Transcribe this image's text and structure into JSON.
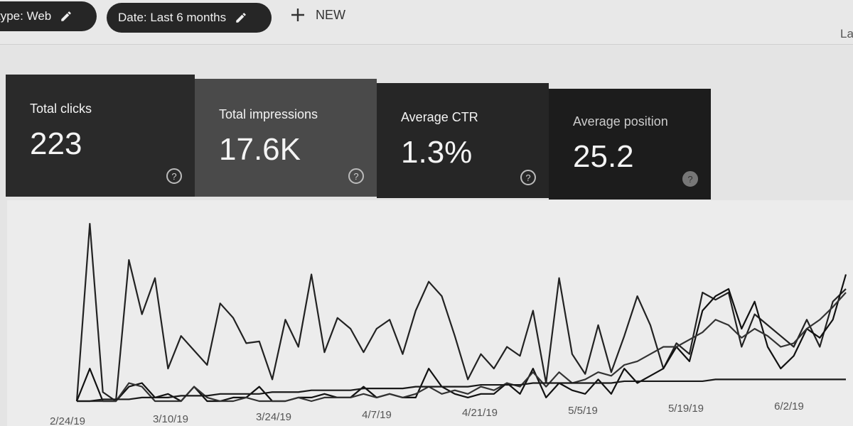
{
  "filters": [
    {
      "label": "type: Web",
      "icon": "pencil-icon"
    },
    {
      "label": "Date: Last 6 months",
      "icon": "pencil-icon"
    }
  ],
  "new_button": {
    "label": "NEW",
    "icon": "plus-icon"
  },
  "top_right_text": "La",
  "cards": [
    {
      "label": "Total clicks",
      "value": "223",
      "color": "#2a2a2a",
      "help": "?"
    },
    {
      "label": "Total impressions",
      "value": "17.6K",
      "color": "#4a4a4a",
      "help": "?"
    },
    {
      "label": "Average CTR",
      "value": "1.3%",
      "color": "#262626",
      "help": "?"
    },
    {
      "label": "Average position",
      "value": "25.2",
      "color": "#1c1c1c",
      "help": "?"
    }
  ],
  "chart_data": {
    "type": "line",
    "x_ticks": [
      "2/24/19",
      "3/10/19",
      "3/24/19",
      "4/7/19",
      "4/21/19",
      "5/5/19",
      "5/19/19",
      "6/2/19"
    ],
    "grid": false,
    "series": [
      {
        "values": [
          0,
          98,
          5,
          0,
          78,
          48,
          68,
          18,
          36,
          28,
          20,
          54,
          46,
          32,
          33,
          12,
          45,
          30,
          70,
          27,
          46,
          40,
          27,
          40,
          45,
          26,
          50,
          66,
          58,
          36,
          12,
          26,
          18,
          30,
          25,
          50,
          10,
          68,
          26,
          15,
          42,
          16,
          36,
          58,
          42,
          18,
          32,
          26,
          60,
          56,
          60,
          30,
          48,
          42,
          36,
          30,
          45,
          30,
          55,
          62
        ]
      },
      {
        "values": [
          0,
          18,
          0,
          0,
          8,
          10,
          2,
          4,
          0,
          8,
          0,
          0,
          2,
          2,
          8,
          0,
          0,
          2,
          2,
          4,
          2,
          2,
          8,
          2,
          4,
          2,
          2,
          18,
          8,
          4,
          2,
          4,
          4,
          10,
          4,
          18,
          2,
          10,
          6,
          4,
          12,
          4,
          18,
          10,
          14,
          18,
          30,
          22,
          50,
          58,
          62,
          40,
          55,
          30,
          18,
          25,
          40,
          35,
          45,
          70
        ]
      },
      {
        "values": [
          0,
          0,
          0,
          0,
          10,
          8,
          0,
          0,
          0,
          8,
          2,
          0,
          0,
          2,
          0,
          0,
          0,
          2,
          0,
          2,
          2,
          2,
          4,
          2,
          4,
          2,
          4,
          8,
          4,
          6,
          4,
          8,
          6,
          10,
          8,
          16,
          8,
          16,
          10,
          12,
          16,
          14,
          20,
          22,
          26,
          30,
          30,
          34,
          38,
          45,
          42,
          35,
          40,
          36,
          30,
          32,
          40,
          45,
          52,
          60
        ]
      },
      {
        "values": [
          0,
          0,
          1,
          1,
          1,
          2,
          2,
          2,
          3,
          3,
          3,
          4,
          4,
          4,
          4,
          5,
          5,
          5,
          6,
          6,
          6,
          6,
          7,
          7,
          7,
          7,
          8,
          8,
          8,
          8,
          8,
          9,
          9,
          9,
          9,
          10,
          10,
          10,
          10,
          10,
          10,
          10,
          11,
          11,
          11,
          11,
          11,
          11,
          11,
          12,
          12,
          12,
          12,
          12,
          12,
          12,
          12,
          12,
          12,
          12
        ]
      }
    ]
  }
}
